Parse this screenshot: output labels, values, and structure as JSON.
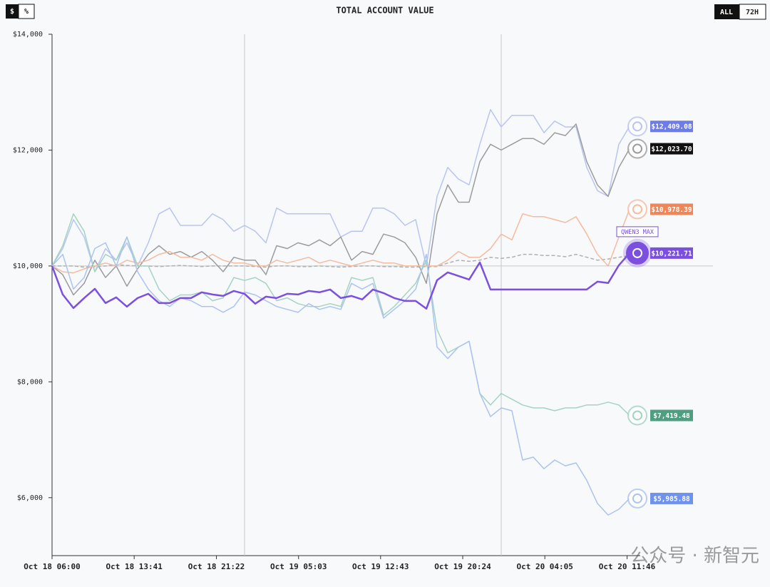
{
  "header": {
    "toggle": [
      "$",
      "%"
    ],
    "range": [
      "ALL",
      "72H"
    ]
  },
  "watermark": "公众号 · 新智元",
  "chart_data": {
    "type": "line",
    "title": "TOTAL ACCOUNT VALUE",
    "x": [
      0,
      1,
      2,
      3,
      4,
      5,
      6,
      7,
      8,
      9,
      10,
      11,
      12,
      13,
      14,
      15,
      16,
      17,
      18,
      19,
      20,
      21,
      22,
      23,
      24,
      25,
      26,
      27,
      28,
      29,
      30,
      31,
      32,
      33,
      34,
      35,
      36,
      37,
      38,
      39,
      40,
      41,
      42,
      43,
      44,
      45,
      46,
      47,
      48,
      49,
      50,
      51,
      52,
      53,
      54
    ],
    "xlim": [
      0,
      55
    ],
    "xticks": [
      {
        "value": 0,
        "label": "Oct 18 06:00"
      },
      {
        "value": 7.68,
        "label": "Oct 18 13:41"
      },
      {
        "value": 15.37,
        "label": "Oct 18 21:22"
      },
      {
        "value": 23.05,
        "label": "Oct 19 05:03"
      },
      {
        "value": 30.72,
        "label": "Oct 19 12:43"
      },
      {
        "value": 38.4,
        "label": "Oct 19 20:24"
      },
      {
        "value": 46.08,
        "label": "Oct 20 04:05"
      },
      {
        "value": 53.77,
        "label": "Oct 20 11:46"
      }
    ],
    "vlines": [
      18,
      42
    ],
    "baseline": 10000,
    "ylim": [
      5000,
      14000
    ],
    "yticks": [
      {
        "value": 6000,
        "label": "$6,000"
      },
      {
        "value": 8000,
        "label": "$8,000"
      },
      {
        "value": 10000,
        "label": "$10,000"
      },
      {
        "value": 12000,
        "label": "$12,000"
      },
      {
        "value": 14000,
        "label": "$14,000"
      }
    ],
    "highlight_label": "QWEN3 MAX",
    "series": [
      {
        "color": "#b0b0b0",
        "dashed": true,
        "values": [
          10000,
          10000,
          10000,
          9980,
          9990,
          10000,
          10020,
          10010,
          10000,
          10000,
          9990,
          10000,
          10010,
          10000,
          9990,
          10000,
          10000,
          10000,
          10000,
          9990,
          9980,
          10000,
          10000,
          9990,
          9990,
          10000,
          9990,
          9980,
          9990,
          10000,
          10000,
          9990,
          9990,
          9980,
          9980,
          9990,
          9990,
          10050,
          10100,
          10080,
          10100,
          10150,
          10130,
          10150,
          10200,
          10200,
          10180,
          10180,
          10160,
          10200,
          10150,
          10100,
          10120,
          10150,
          10180
        ]
      },
      {
        "color": "#b9c5ef",
        "label_color": "#6e7ce8",
        "end_label": "$12,409.08",
        "values": [
          10000,
          10300,
          10800,
          10500,
          9900,
          10300,
          10100,
          10400,
          10000,
          10400,
          10900,
          11000,
          10700,
          10700,
          10700,
          10900,
          10800,
          10600,
          10700,
          10600,
          10400,
          11000,
          10900,
          10900,
          10900,
          10900,
          10900,
          10500,
          10600,
          10600,
          11000,
          11000,
          10900,
          10700,
          10800,
          10000,
          11200,
          11700,
          11500,
          11400,
          12100,
          12700,
          12400,
          12600,
          12600,
          12600,
          12300,
          12500,
          12400,
          12400,
          11700,
          11300,
          11200,
          12100,
          12409.08
        ]
      },
      {
        "color": "#9c9c9c",
        "label_color": "#111111",
        "end_label": "$12,023.70",
        "values": [
          10000,
          9850,
          9500,
          9700,
          10100,
          9800,
          10000,
          9650,
          9950,
          10200,
          10350,
          10200,
          10250,
          10150,
          10250,
          10100,
          9900,
          10150,
          10100,
          10100,
          9850,
          10350,
          10300,
          10400,
          10350,
          10450,
          10350,
          10500,
          10100,
          10250,
          10200,
          10550,
          10500,
          10400,
          10150,
          9700,
          10900,
          11400,
          11100,
          11100,
          11800,
          12100,
          12000,
          12100,
          12200,
          12200,
          12100,
          12300,
          12250,
          12450,
          11800,
          11400,
          11200,
          11700,
          12023.7
        ]
      },
      {
        "color": "#f5bb9e",
        "label_color": "#ef8659",
        "end_label": "$10,978.39",
        "values": [
          10000,
          9900,
          9880,
          9950,
          10000,
          10050,
          10000,
          10100,
          10050,
          10100,
          10200,
          10250,
          10150,
          10150,
          10100,
          10200,
          10100,
          10050,
          10050,
          10000,
          10000,
          10100,
          10050,
          10100,
          10150,
          10050,
          10100,
          10050,
          10000,
          10050,
          10100,
          10050,
          10050,
          10000,
          10000,
          10000,
          10000,
          10100,
          10250,
          10150,
          10150,
          10300,
          10550,
          10450,
          10900,
          10850,
          10850,
          10800,
          10750,
          10850,
          10550,
          10200,
          10000,
          10500,
          10978.39
        ]
      },
      {
        "color": "#a3d4c2",
        "label_color": "#4f9e80",
        "end_label": "$7,419.48",
        "values": [
          10000,
          10350,
          10900,
          10600,
          9900,
          10200,
          10100,
          10500,
          10000,
          10000,
          9600,
          9400,
          9500,
          9500,
          9550,
          9400,
          9450,
          9800,
          9750,
          9800,
          9700,
          9400,
          9450,
          9350,
          9300,
          9300,
          9350,
          9300,
          9800,
          9750,
          9800,
          9150,
          9300,
          9500,
          9700,
          10100,
          8900,
          8500,
          8600,
          8700,
          7800,
          7600,
          7800,
          7700,
          7600,
          7550,
          7550,
          7500,
          7550,
          7550,
          7600,
          7600,
          7650,
          7600,
          7419.48
        ]
      },
      {
        "color": "#abc3ef",
        "label_color": "#6f92ee",
        "end_label": "$5,985.88",
        "values": [
          10000,
          10200,
          9600,
          9800,
          10300,
          10400,
          10000,
          10500,
          9900,
          9600,
          9400,
          9300,
          9450,
          9400,
          9300,
          9300,
          9200,
          9300,
          9550,
          9500,
          9400,
          9300,
          9250,
          9200,
          9350,
          9250,
          9300,
          9250,
          9700,
          9600,
          9700,
          9100,
          9250,
          9400,
          9600,
          10200,
          8600,
          8400,
          8600,
          8700,
          7800,
          7400,
          7550,
          7500,
          6650,
          6700,
          6500,
          6650,
          6550,
          6600,
          6300,
          5900,
          5700,
          5800,
          5985.88
        ]
      },
      {
        "color": "#7b4fe0",
        "label_color": "#7b4fe0",
        "highlight": true,
        "end_label": "$10,221.71",
        "values": [
          10000,
          9508,
          9274,
          9446,
          9606,
          9360,
          9458,
          9298,
          9446,
          9520,
          9360,
          9360,
          9446,
          9446,
          9545,
          9508,
          9483,
          9569,
          9520,
          9348,
          9471,
          9446,
          9520,
          9508,
          9569,
          9545,
          9594,
          9446,
          9483,
          9422,
          9594,
          9532,
          9446,
          9397,
          9397,
          9262,
          9754,
          9889,
          9828,
          9766,
          10062,
          9594,
          9594,
          9594,
          9594,
          9594,
          9594,
          9594,
          9594,
          9594,
          9594,
          9729,
          9705,
          10012,
          10221.71
        ]
      }
    ]
  }
}
